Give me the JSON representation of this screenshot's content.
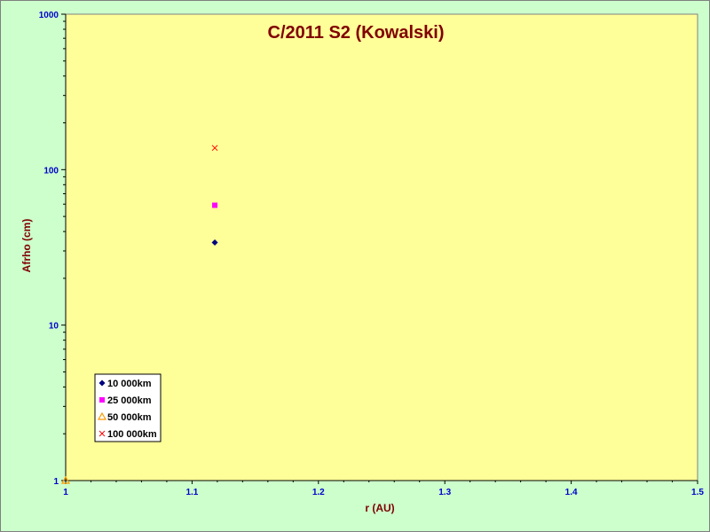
{
  "chart_data": {
    "type": "scatter",
    "title": "C/2011 S2 (Kowalski)",
    "xlabel": "r (AU)",
    "ylabel": "Afrho (cm)",
    "xlim": [
      1,
      1.5
    ],
    "ylim": [
      1,
      1000
    ],
    "yscale": "log",
    "x_ticks": [
      "1",
      "1.1",
      "1.2",
      "1.3",
      "1.4",
      "1.5"
    ],
    "y_ticks": [
      "1",
      "10",
      "100",
      "1000"
    ],
    "grid": false,
    "legend_position": "bottom-left",
    "colors": {
      "page_background": "#ccffcc",
      "plot_background": "#ffff99",
      "title": "#800000",
      "tick_labels": "#0000cc"
    },
    "series": [
      {
        "name": "10 000km",
        "marker": "diamond",
        "color": "#000080",
        "x": [
          1.118
        ],
        "y": [
          34
        ]
      },
      {
        "name": "25 000km",
        "marker": "square",
        "color": "#ff00ff",
        "x": [
          1.118
        ],
        "y": [
          59
        ]
      },
      {
        "name": "50 000km",
        "marker": "triangle",
        "color": "#ff9900",
        "x": [
          1.0
        ],
        "y": [
          1
        ]
      },
      {
        "name": "100 000km",
        "marker": "x",
        "color": "#ff0000",
        "x": [
          1.118
        ],
        "y": [
          138
        ]
      }
    ]
  }
}
